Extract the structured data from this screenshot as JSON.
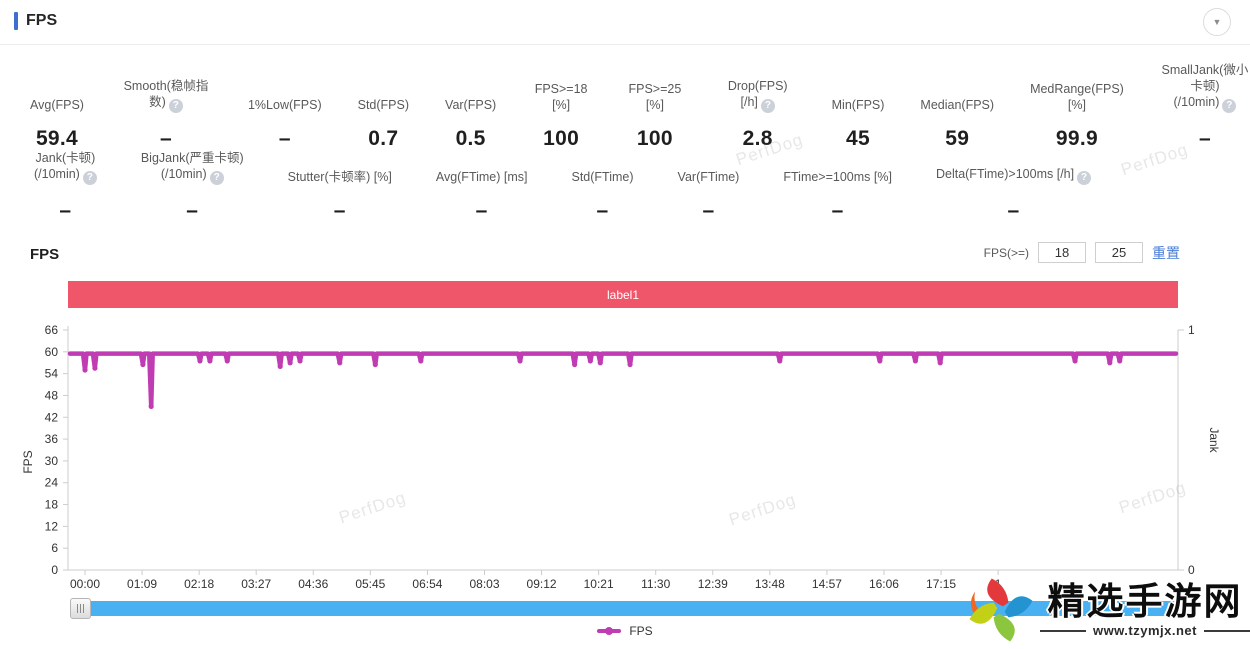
{
  "header": {
    "title": "FPS",
    "collapse_icon": "▼"
  },
  "colors": {
    "accent_blue": "#3d6fd1",
    "link_blue": "#4a7cd6",
    "annotation_red": "#f0566a",
    "series_magenta": "#c03cb2",
    "scrollbar_blue": "#49b1f1"
  },
  "stats_row1": [
    {
      "label": "Avg(FPS)",
      "value": "59.4",
      "help": false
    },
    {
      "label": "Smooth(稳帧指数)",
      "value": "–",
      "help": true
    },
    {
      "label": "1%Low(FPS)",
      "value": "–",
      "help": false
    },
    {
      "label": "Std(FPS)",
      "value": "0.7",
      "help": false
    },
    {
      "label": "Var(FPS)",
      "value": "0.5",
      "help": false
    },
    {
      "label": "FPS>=18 [%]",
      "value": "100",
      "help": false
    },
    {
      "label": "FPS>=25 [%]",
      "value": "100",
      "help": false
    },
    {
      "label": "Drop(FPS) [/h]",
      "value": "2.8",
      "help": true
    },
    {
      "label": "Min(FPS)",
      "value": "45",
      "help": false
    },
    {
      "label": "Median(FPS)",
      "value": "59",
      "help": false
    },
    {
      "label": "MedRange(FPS)[%]",
      "value": "99.9",
      "help": false
    },
    {
      "label": "SmallJank(微小卡顿)\n(/10min)",
      "value": "–",
      "help": true
    }
  ],
  "stats_row2": [
    {
      "label": "Jank(卡顿)\n(/10min)",
      "value": "–",
      "help": true
    },
    {
      "label": "BigJank(严重卡顿)\n(/10min)",
      "value": "–",
      "help": true
    },
    {
      "label": "Stutter(卡顿率) [%]",
      "value": "–",
      "help": false
    },
    {
      "label": "Avg(FTime) [ms]",
      "value": "–",
      "help": false
    },
    {
      "label": "Std(FTime)",
      "value": "–",
      "help": false
    },
    {
      "label": "Var(FTime)",
      "value": "–",
      "help": false
    },
    {
      "label": "FTime>=100ms [%]",
      "value": "–",
      "help": false
    },
    {
      "label": "Delta(FTime)>100ms [/h]",
      "value": "–",
      "help": true
    }
  ],
  "chart_section": {
    "title": "FPS",
    "fps_filter": {
      "label": "FPS(>=)",
      "input1": "18",
      "input2": "25",
      "reset_label": "重置"
    },
    "legend_label": "FPS"
  },
  "chart_data": {
    "type": "line",
    "title": "FPS",
    "annotation_label": "label1",
    "annotation_color": "#f0566a",
    "ylabel_left": "FPS",
    "ylabel_right": "Jank",
    "ylim_left": [
      0,
      66
    ],
    "yticks_left": [
      0,
      6,
      12,
      18,
      24,
      30,
      36,
      42,
      48,
      54,
      60,
      66
    ],
    "ylim_right": [
      0,
      1
    ],
    "yticks_right": [
      0,
      1
    ],
    "grid": false,
    "legend_position": "bottom",
    "x_tick_labels": [
      "00:00",
      "01:09",
      "02:18",
      "03:27",
      "04:36",
      "05:45",
      "06:54",
      "08:03",
      "09:12",
      "10:21",
      "11:30",
      "12:39",
      "13:48",
      "14:57",
      "16:06",
      "17:15",
      "1"
    ],
    "x_tick_seconds": [
      0,
      69,
      138,
      207,
      276,
      345,
      414,
      483,
      552,
      621,
      690,
      759,
      828,
      897,
      966,
      1035,
      1104
    ],
    "duration_seconds": 1319,
    "series": [
      {
        "name": "FPS",
        "color": "#c03cb2",
        "baseline_fps": 59.5,
        "dips_time_fps": [
          [
            0,
            55
          ],
          [
            12,
            55.5
          ],
          [
            70,
            56.5
          ],
          [
            80,
            45
          ],
          [
            139,
            57.5
          ],
          [
            151,
            57.5
          ],
          [
            172,
            57.5
          ],
          [
            236,
            56
          ],
          [
            248,
            57
          ],
          [
            260,
            57.5
          ],
          [
            308,
            57
          ],
          [
            351,
            56.5
          ],
          [
            406,
            57.5
          ],
          [
            526,
            57.5
          ],
          [
            592,
            56.5
          ],
          [
            611,
            57.5
          ],
          [
            623,
            57
          ],
          [
            659,
            56.5
          ],
          [
            840,
            57.5
          ],
          [
            961,
            57.5
          ],
          [
            1004,
            57.5
          ],
          [
            1034,
            57
          ],
          [
            1197,
            57.5
          ],
          [
            1239,
            57
          ],
          [
            1251,
            57.5
          ]
        ]
      }
    ]
  },
  "watermark": {
    "text": "PerfDog"
  },
  "site_logo": {
    "title": "精选手游网",
    "url": "www.tzymjx.net"
  }
}
